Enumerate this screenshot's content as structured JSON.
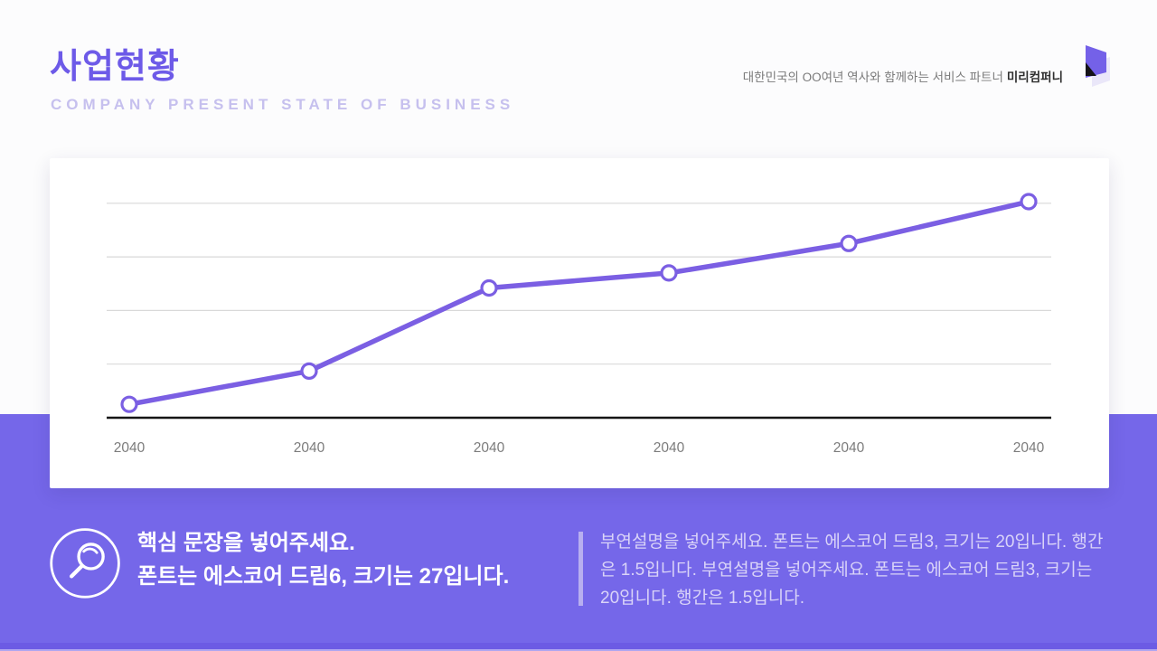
{
  "header": {
    "title": "사업현황",
    "subtitle": "COMPANY PRESENT STATE OF BUSINESS",
    "tagline": "대한민국의 OO여년 역사와 함께하는 서비스 파트너",
    "brand": "미리컴퍼니"
  },
  "chart_data": {
    "type": "line",
    "categories": [
      "2040",
      "2040",
      "2040",
      "2040",
      "2040",
      "2040"
    ],
    "values": [
      0.25,
      0.87,
      2.42,
      2.7,
      3.25,
      4.03
    ],
    "title": "",
    "xlabel": "",
    "ylabel": "",
    "ylim": [
      0,
      4.6
    ],
    "gridline_values": [
      1,
      2,
      3,
      4
    ],
    "grid": true,
    "legend": false,
    "marker": "open-circle"
  },
  "callout": {
    "heading_line1": "핵심 문장을 넣어주세요.",
    "heading_line2": "폰트는 에스코어 드림6, 크기는 27입니다.",
    "body": "부연설명을 넣어주세요. 폰트는 에스코어 드림3, 크기는 20입니다. 행간은 1.5입니다. 부연설명을 넣어주세요. 폰트는 에스코어 드림3, 크기는 20입니다. 행간은 1.5입니다."
  },
  "colors": {
    "accent": "#6D5AE8",
    "purple_bg": "#7567E9",
    "chart_line": "#7B5FE3",
    "grid_line": "#D9D9D9",
    "axis_line": "#151515",
    "tick_label": "#7C7C7C",
    "subtitle_text": "#C6C0EE",
    "body_text": "#DAD4F8"
  }
}
